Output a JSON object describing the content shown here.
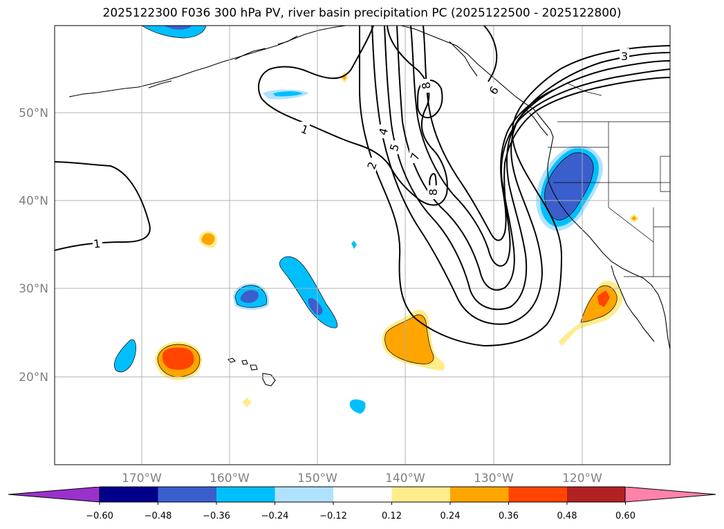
{
  "title": "2025122300 F036 300 hPa PV, river basin precipitation PC (2025122500 - 2025122800)",
  "lat_labels": [
    "50°N",
    "40°N",
    "30°N",
    "20°N"
  ],
  "lon_labels": [
    "170°W",
    "160°W",
    "150°W",
    "140°W",
    "130°W",
    "120°W"
  ],
  "contour_labels": [
    "1",
    "1",
    "2",
    "3",
    "4",
    "5",
    "6",
    "7",
    "8",
    "8"
  ],
  "colorbar": {
    "ticks": [
      "−0.60",
      "−0.48",
      "−0.36",
      "−0.24",
      "−0.12",
      "0.12",
      "0.24",
      "0.36",
      "0.48",
      "0.60"
    ],
    "colors": [
      "#9932cc",
      "#00008b",
      "#3a5fcd",
      "#00bfff",
      "#b0e2ff",
      "#ffffff",
      "#ffec8b",
      "#ffa500",
      "#ff4500",
      "#b22222",
      "#ff82ab"
    ]
  },
  "colors": {
    "neg_light": "#b0e2ff",
    "neg_mid": "#00bfff",
    "neg_strong": "#3a5fcd",
    "pos_light": "#ffec8b",
    "pos_mid": "#ffa500",
    "pos_strong": "#ff4500",
    "grid": "#b0b0b0"
  }
}
